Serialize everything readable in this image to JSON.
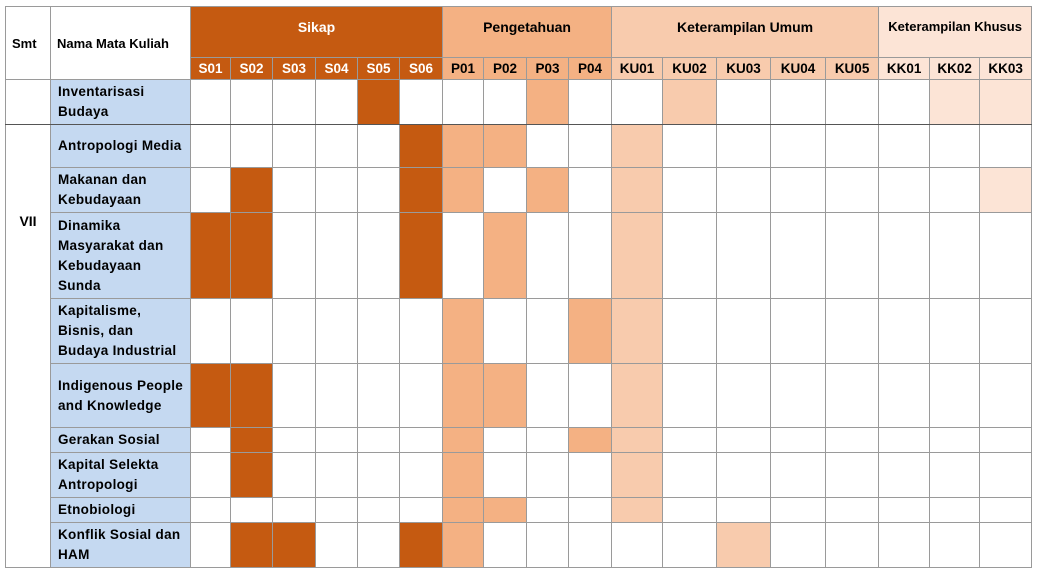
{
  "header": {
    "smt": "Smt",
    "course": "Nama Mata Kuliah",
    "groups": [
      {
        "name": "Sikap",
        "color": "#c55a11",
        "codes": [
          "S01",
          "S02",
          "S03",
          "S04",
          "S05",
          "S06"
        ]
      },
      {
        "name": "Pengetahuan",
        "color": "#f4b183",
        "codes": [
          "P01",
          "P02",
          "P03",
          "P04"
        ]
      },
      {
        "name": "Keterampilan Umum",
        "color": "#f8cbad",
        "codes": [
          "KU01",
          "KU02",
          "KU03",
          "KU04",
          "KU05"
        ]
      },
      {
        "name": "Keterampilan Khusus",
        "color": "#fce4d6",
        "codes": [
          "KK01",
          "KK02",
          "KK03"
        ]
      }
    ]
  },
  "semester": "VII",
  "rows": [
    {
      "course": "Inventarisasi Budaya",
      "cells": [
        0,
        0,
        0,
        0,
        1,
        0,
        0,
        0,
        1,
        0,
        0,
        1,
        0,
        0,
        0,
        0,
        1,
        1
      ]
    },
    {
      "course": "Antropologi Media",
      "cells": [
        0,
        0,
        0,
        0,
        0,
        1,
        1,
        1,
        0,
        0,
        1,
        0,
        0,
        0,
        0,
        0,
        0,
        0
      ]
    },
    {
      "course": "Makanan dan Kebudayaan",
      "cells": [
        0,
        1,
        0,
        0,
        0,
        1,
        1,
        0,
        1,
        0,
        1,
        0,
        0,
        0,
        0,
        0,
        0,
        1
      ]
    },
    {
      "course": "Dinamika Masyarakat dan Kebudayaan Sunda",
      "cells": [
        1,
        1,
        0,
        0,
        0,
        1,
        0,
        1,
        0,
        0,
        1,
        0,
        0,
        0,
        0,
        0,
        0,
        0
      ]
    },
    {
      "course": "Kapitalisme, Bisnis, dan Budaya Industrial",
      "cells": [
        0,
        0,
        0,
        0,
        0,
        0,
        1,
        0,
        0,
        1,
        1,
        0,
        0,
        0,
        0,
        0,
        0,
        0
      ]
    },
    {
      "course": "Indigenous People and Knowledge",
      "cells": [
        1,
        1,
        0,
        0,
        0,
        0,
        1,
        1,
        0,
        0,
        1,
        0,
        0,
        0,
        0,
        0,
        0,
        0
      ]
    },
    {
      "course": "Gerakan Sosial",
      "cells": [
        0,
        1,
        0,
        0,
        0,
        0,
        1,
        0,
        0,
        1,
        1,
        0,
        0,
        0,
        0,
        0,
        0,
        0
      ]
    },
    {
      "course": "Kapital Selekta Antropologi",
      "cells": [
        0,
        1,
        0,
        0,
        0,
        0,
        1,
        0,
        0,
        0,
        1,
        0,
        0,
        0,
        0,
        0,
        0,
        0
      ]
    },
    {
      "course": "Etnobiologi",
      "cells": [
        0,
        0,
        0,
        0,
        0,
        0,
        1,
        1,
        0,
        0,
        1,
        0,
        0,
        0,
        0,
        0,
        0,
        0
      ]
    },
    {
      "course": "Konflik Sosial dan HAM",
      "cells": [
        0,
        1,
        1,
        0,
        0,
        1,
        1,
        0,
        0,
        0,
        0,
        0,
        1,
        0,
        0,
        0,
        0,
        0
      ]
    }
  ]
}
